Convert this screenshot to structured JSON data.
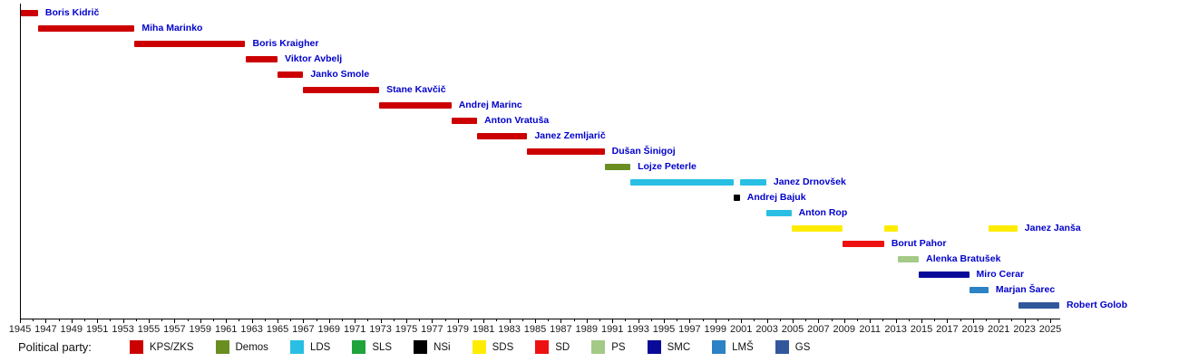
{
  "legend": {
    "title": "Political party:",
    "parties": [
      {
        "name": "KPS/ZKS",
        "color": "#cc0000"
      },
      {
        "name": "Demos",
        "color": "#6b8e23"
      },
      {
        "name": "LDS",
        "color": "#29bfe4"
      },
      {
        "name": "SLS",
        "color": "#1fa43c"
      },
      {
        "name": "NSi",
        "color": "#000000"
      },
      {
        "name": "SDS",
        "color": "#ffec00"
      },
      {
        "name": "SD",
        "color": "#ee1111"
      },
      {
        "name": "PS",
        "color": "#a3ca87"
      },
      {
        "name": "SMC",
        "color": "#0a0a99"
      },
      {
        "name": "LMŠ",
        "color": "#2b82c4"
      },
      {
        "name": "GS",
        "color": "#32589c"
      }
    ]
  },
  "chart_data": {
    "type": "bar",
    "subtype": "timeline-gantt",
    "title": "",
    "xlabel": "",
    "ylabel": "",
    "label_color": "#0000cc",
    "x_axis": {
      "min": 1945,
      "max": 2025.8,
      "minor_tick_interval_years": 1,
      "label_interval_years": 2,
      "tick_labels": [
        1945,
        1947,
        1949,
        1951,
        1953,
        1955,
        1957,
        1959,
        1961,
        1963,
        1965,
        1967,
        1969,
        1971,
        1973,
        1975,
        1977,
        1979,
        1981,
        1983,
        1985,
        1987,
        1989,
        1991,
        1993,
        1995,
        1997,
        1999,
        2001,
        2003,
        2005,
        2007,
        2009,
        2011,
        2013,
        2015,
        2017,
        2019,
        2021,
        2023,
        2025
      ]
    },
    "rows": [
      {
        "name": "Boris Kidrič",
        "party": "KPS/ZKS",
        "terms": [
          [
            1945.0,
            1946.4
          ]
        ]
      },
      {
        "name": "Miha Marinko",
        "party": "KPS/ZKS",
        "terms": [
          [
            1946.4,
            1953.9
          ]
        ]
      },
      {
        "name": "Boris Kraigher",
        "party": "KPS/ZKS",
        "terms": [
          [
            1953.9,
            1962.5
          ]
        ]
      },
      {
        "name": "Viktor Avbelj",
        "party": "KPS/ZKS",
        "terms": [
          [
            1962.5,
            1965.0
          ]
        ]
      },
      {
        "name": "Janko Smole",
        "party": "KPS/ZKS",
        "terms": [
          [
            1965.0,
            1967.0
          ]
        ]
      },
      {
        "name": "Stane Kavčič",
        "party": "KPS/ZKS",
        "terms": [
          [
            1967.0,
            1972.9
          ]
        ]
      },
      {
        "name": "Andrej Marinc",
        "party": "KPS/ZKS",
        "terms": [
          [
            1972.9,
            1978.5
          ]
        ]
      },
      {
        "name": "Anton Vratuša",
        "party": "KPS/ZKS",
        "terms": [
          [
            1978.5,
            1980.5
          ]
        ]
      },
      {
        "name": "Janez Zemljarič",
        "party": "KPS/ZKS",
        "terms": [
          [
            1980.5,
            1984.4
          ]
        ]
      },
      {
        "name": "Dušan Šinigoj",
        "party": "KPS/ZKS",
        "terms": [
          [
            1984.4,
            1990.4
          ]
        ]
      },
      {
        "name": "Lojze Peterle",
        "party": "Demos",
        "terms": [
          [
            1990.4,
            1992.4
          ]
        ]
      },
      {
        "name": "Janez Drnovšek",
        "party": "LDS",
        "terms": [
          [
            1992.4,
            2000.45
          ],
          [
            2000.9,
            2002.95
          ]
        ]
      },
      {
        "name": "Andrej Bajuk",
        "party": "NSi",
        "terms": [
          [
            2000.45,
            2000.9
          ]
        ]
      },
      {
        "name": "Anton Rop",
        "party": "LDS",
        "terms": [
          [
            2002.95,
            2004.9
          ]
        ]
      },
      {
        "name": "Janez Janša",
        "party": "SDS",
        "terms": [
          [
            2004.9,
            2008.9
          ],
          [
            2012.1,
            2013.2
          ],
          [
            2020.2,
            2022.45
          ]
        ]
      },
      {
        "name": "Borut Pahor",
        "party": "SD",
        "terms": [
          [
            2008.9,
            2012.1
          ]
        ]
      },
      {
        "name": "Alenka Bratušek",
        "party": "PS",
        "terms": [
          [
            2013.2,
            2014.8
          ]
        ]
      },
      {
        "name": "Miro Cerar",
        "party": "SMC",
        "terms": [
          [
            2014.8,
            2018.7
          ]
        ]
      },
      {
        "name": "Marjan Šarec",
        "party": "LMŠ",
        "terms": [
          [
            2018.7,
            2020.2
          ]
        ]
      },
      {
        "name": "Robert Golob",
        "party": "GS",
        "terms": [
          [
            2022.5,
            2025.7
          ]
        ]
      }
    ]
  }
}
